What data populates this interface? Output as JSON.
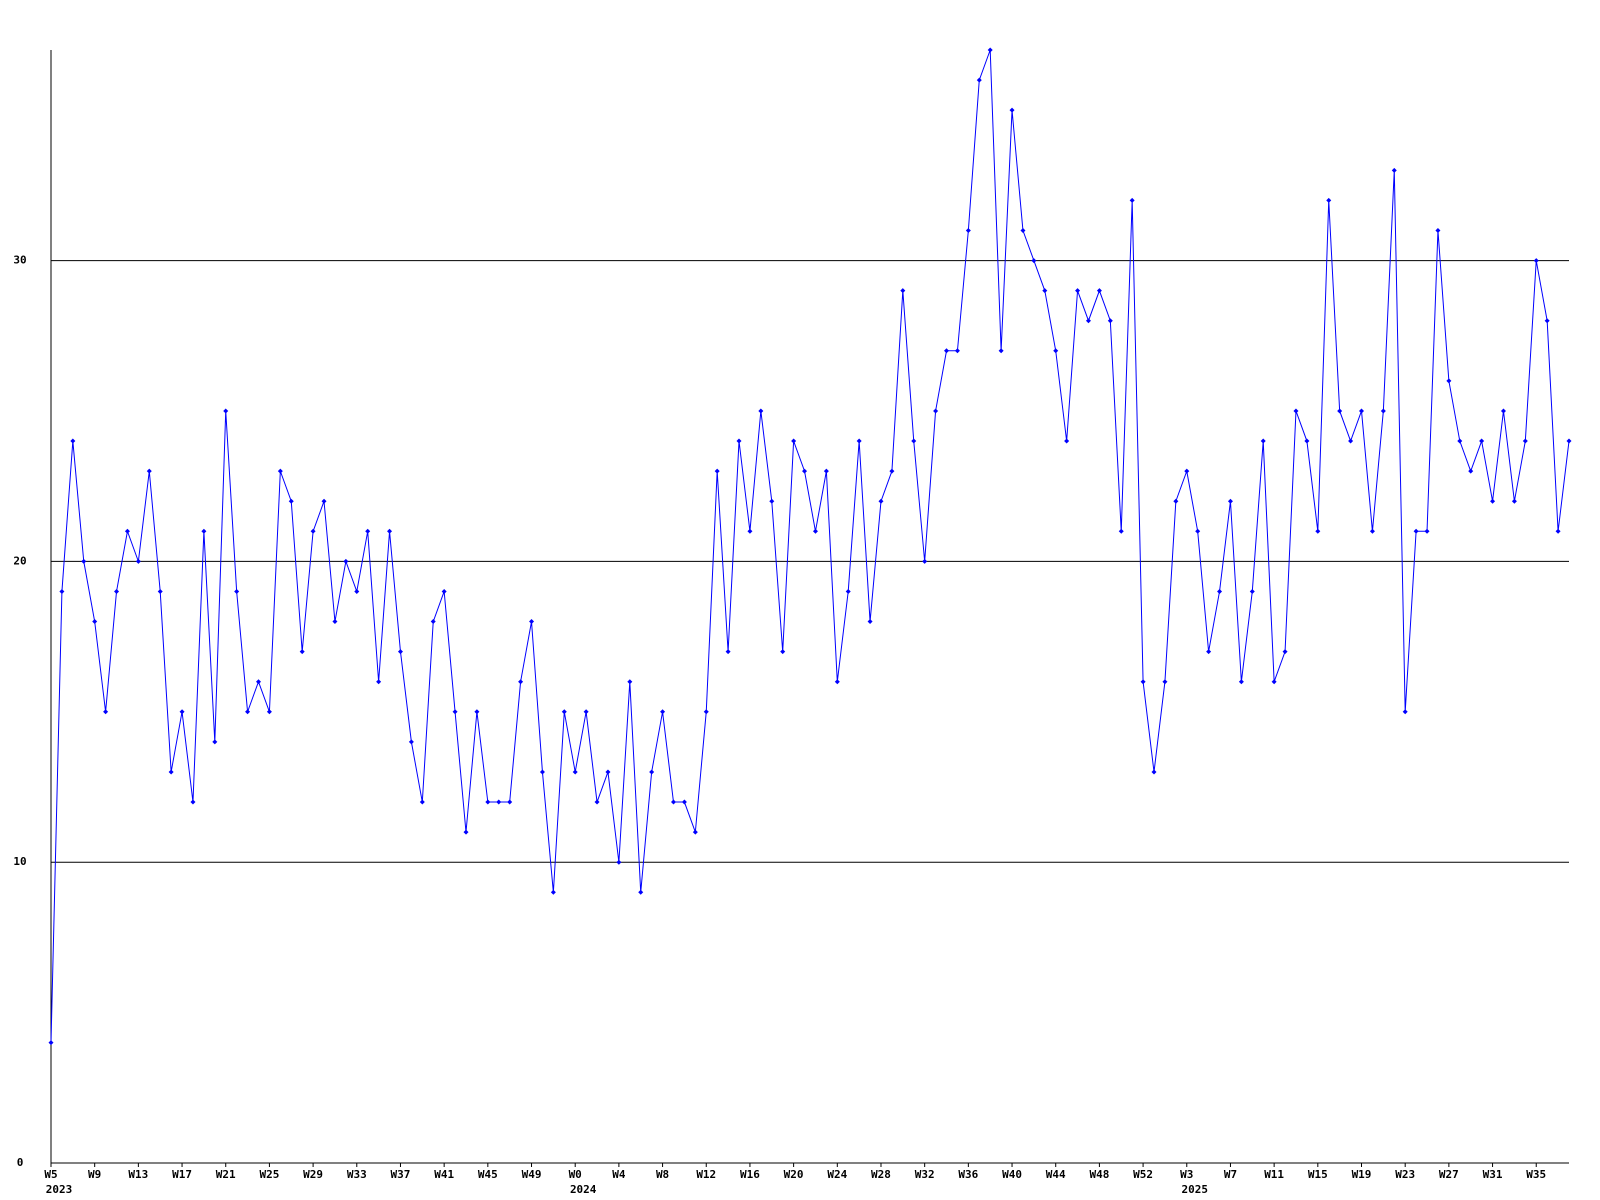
{
  "chart_data": {
    "type": "line",
    "categories": [
      "W5",
      null,
      null,
      null,
      "W9",
      null,
      null,
      null,
      "W13",
      null,
      null,
      null,
      "W17",
      null,
      null,
      null,
      "W21",
      null,
      null,
      null,
      "W25",
      null,
      null,
      null,
      "W29",
      null,
      null,
      null,
      "W33",
      null,
      null,
      null,
      "W37",
      null,
      null,
      null,
      "W41",
      null,
      null,
      null,
      "W45",
      null,
      null,
      null,
      "W49",
      null,
      null,
      null,
      "W0",
      null,
      null,
      null,
      "W4",
      null,
      null,
      null,
      "W8",
      null,
      null,
      null,
      "W12",
      null,
      null,
      null,
      "W16",
      null,
      null,
      null,
      "W20",
      null,
      null,
      null,
      "W24",
      null,
      null,
      null,
      "W28",
      null,
      null,
      null,
      "W32",
      null,
      null,
      null,
      "W36",
      null,
      null,
      null,
      "W40",
      null,
      null,
      null,
      "W44",
      null,
      null,
      null,
      "W48",
      null,
      null,
      null,
      "W52",
      null,
      null,
      null,
      "W3",
      null,
      null,
      null,
      "W7",
      null,
      null,
      null,
      "W11",
      null,
      null,
      null,
      "W15",
      null,
      null,
      null,
      "W19",
      null,
      null,
      null,
      "W23",
      null,
      null,
      null,
      "W27",
      null,
      null,
      null,
      "W31",
      null,
      null,
      null,
      "W35",
      null,
      null,
      null
    ],
    "years": [
      {
        "start": 0,
        "label": "2023"
      },
      {
        "start": 48,
        "label": "2024"
      },
      {
        "start": 104,
        "label": "2025"
      }
    ],
    "series": [
      {
        "color": "#0000ff",
        "values": [
          4,
          19,
          24,
          20,
          18,
          15,
          19,
          21,
          20,
          23,
          19,
          13,
          15,
          12,
          21,
          14,
          25,
          19,
          15,
          16,
          15,
          23,
          22,
          17,
          21,
          22,
          18,
          20,
          19,
          21,
          16,
          21,
          17,
          14,
          12,
          18,
          19,
          15,
          11,
          15,
          12,
          12,
          12,
          16,
          18,
          13,
          9,
          15,
          13,
          15,
          12,
          13,
          10,
          16,
          9,
          13,
          15,
          12,
          12,
          11,
          15,
          23,
          17,
          24,
          21,
          25,
          22,
          17,
          24,
          23,
          21,
          23,
          16,
          19,
          24,
          18,
          22,
          23,
          29,
          24,
          20,
          25,
          27,
          27,
          31,
          36,
          37,
          27,
          35,
          31,
          30,
          29,
          27,
          24,
          29,
          28,
          29,
          28,
          21,
          32,
          16,
          13,
          16,
          22,
          23,
          21,
          17,
          19,
          22,
          16,
          19,
          24,
          16,
          17,
          25,
          24,
          21,
          32,
          25,
          24,
          25,
          21,
          25,
          33,
          15,
          21,
          21,
          31,
          26,
          24,
          23,
          24,
          22,
          25,
          22,
          24,
          30,
          28,
          21,
          24
        ]
      }
    ],
    "ylim": [
      0,
      37
    ],
    "yticks": [
      0,
      10,
      20,
      30
    ],
    "grid": true
  }
}
